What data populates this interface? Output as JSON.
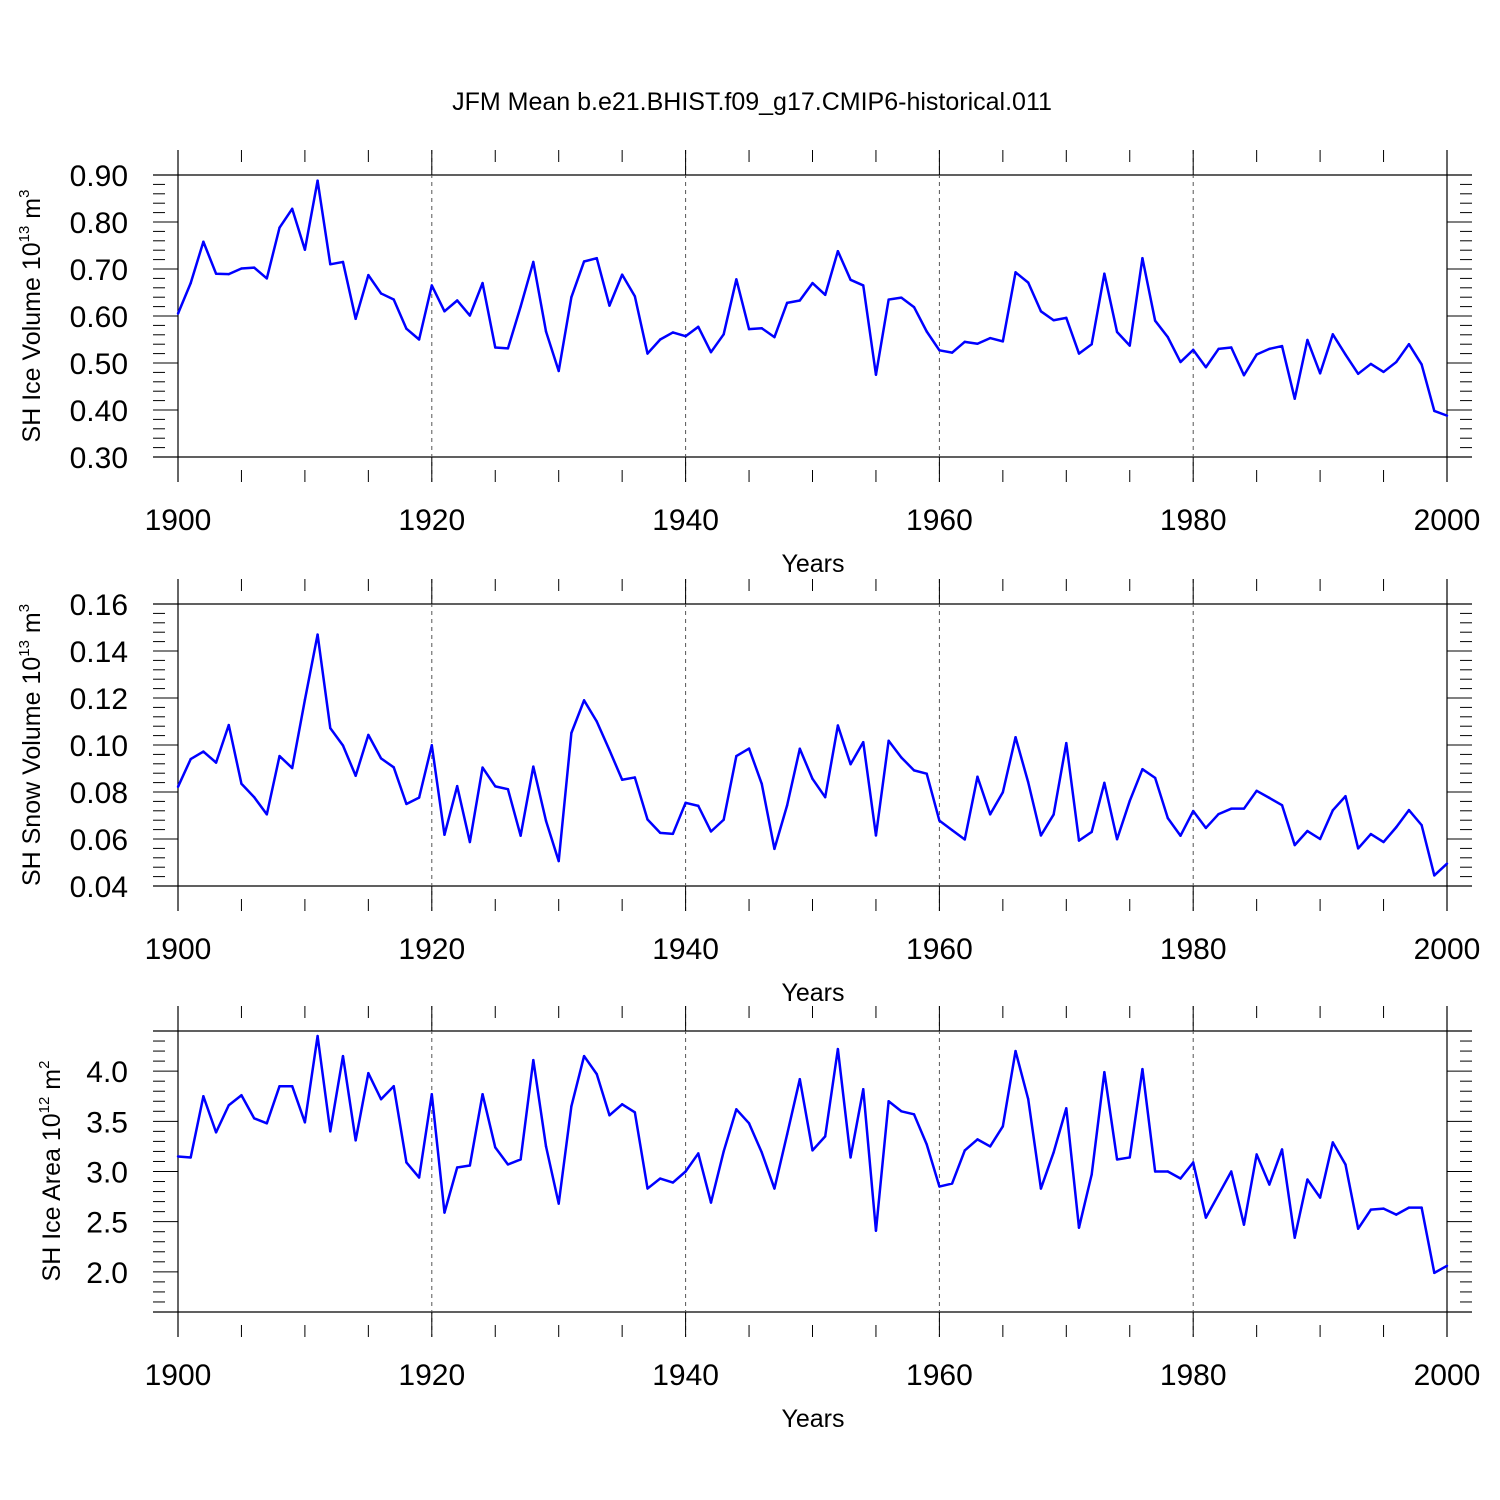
{
  "title": "JFM Mean b.e21.BHIST.f09_g17.CMIP6-historical.011",
  "colors": {
    "series": "#0000ff",
    "axis": "#000000",
    "grid": "#555555"
  },
  "chart_data": [
    {
      "type": "line",
      "title": "",
      "xlabel": "Years",
      "ylabel": {
        "text": "SH Ice Volume 10",
        "sup": "13",
        "unit": " m",
        "unit_sup": "3"
      },
      "xlim": [
        1900,
        2000
      ],
      "ylim": [
        0.3,
        0.9
      ],
      "xticks": [
        1900,
        1920,
        1940,
        1960,
        1980,
        2000
      ],
      "xtick_labels": [
        "1900",
        "1920",
        "1940",
        "1960",
        "1980",
        "2000"
      ],
      "yticks": [
        0.3,
        0.4,
        0.5,
        0.6,
        0.7,
        0.8,
        0.9
      ],
      "ytick_labels": [
        "0.30",
        "0.40",
        "0.50",
        "0.60",
        "0.70",
        "0.80",
        "0.90"
      ],
      "grid_x": "dashed",
      "x_start": 1900,
      "series": [
        {
          "name": "SH Ice Volume",
          "values": [
            0.605,
            0.67,
            0.758,
            0.69,
            0.689,
            0.701,
            0.703,
            0.68,
            0.788,
            0.828,
            0.741,
            0.888,
            0.71,
            0.715,
            0.594,
            0.687,
            0.648,
            0.635,
            0.573,
            0.55,
            0.665,
            0.61,
            0.633,
            0.601,
            0.67,
            0.533,
            0.531,
            0.62,
            0.715,
            0.567,
            0.483,
            0.64,
            0.716,
            0.723,
            0.622,
            0.688,
            0.642,
            0.52,
            0.55,
            0.565,
            0.557,
            0.577,
            0.523,
            0.561,
            0.678,
            0.572,
            0.574,
            0.555,
            0.628,
            0.633,
            0.67,
            0.645,
            0.738,
            0.677,
            0.665,
            0.475,
            0.635,
            0.639,
            0.619,
            0.567,
            0.527,
            0.522,
            0.545,
            0.541,
            0.553,
            0.546,
            0.693,
            0.671,
            0.61,
            0.591,
            0.596,
            0.52,
            0.54,
            0.69,
            0.566,
            0.537,
            0.723,
            0.59,
            0.555,
            0.502,
            0.528,
            0.491,
            0.53,
            0.533,
            0.474,
            0.518,
            0.53,
            0.536,
            0.424,
            0.549,
            0.478,
            0.561,
            0.518,
            0.477,
            0.498,
            0.481,
            0.502,
            0.54,
            0.497,
            0.398,
            0.388
          ]
        }
      ]
    },
    {
      "type": "line",
      "title": "",
      "xlabel": "Years",
      "ylabel": {
        "text": "SH Snow Volume 10",
        "sup": "13",
        "unit": " m",
        "unit_sup": "3"
      },
      "xlim": [
        1900,
        2000
      ],
      "ylim": [
        0.04,
        0.16
      ],
      "xticks": [
        1900,
        1920,
        1940,
        1960,
        1980,
        2000
      ],
      "xtick_labels": [
        "1900",
        "1920",
        "1940",
        "1960",
        "1980",
        "2000"
      ],
      "yticks": [
        0.04,
        0.06,
        0.08,
        0.1,
        0.12,
        0.14,
        0.16
      ],
      "ytick_labels": [
        "0.04",
        "0.06",
        "0.08",
        "0.10",
        "0.12",
        "0.14",
        "0.16"
      ],
      "grid_x": "dashed",
      "x_start": 1900,
      "series": [
        {
          "name": "SH Snow Volume",
          "values": [
            0.0822,
            0.094,
            0.0972,
            0.0925,
            0.1085,
            0.0835,
            0.0778,
            0.0705,
            0.0953,
            0.0902,
            0.1192,
            0.147,
            0.1072,
            0.0998,
            0.0869,
            0.1043,
            0.0943,
            0.0905,
            0.0749,
            0.0776,
            0.0999,
            0.0618,
            0.0825,
            0.0587,
            0.0904,
            0.0824,
            0.0812,
            0.0614,
            0.0908,
            0.0677,
            0.0506,
            0.1051,
            0.119,
            0.11,
            0.0978,
            0.0852,
            0.0862,
            0.0683,
            0.0626,
            0.0622,
            0.0754,
            0.0741,
            0.0632,
            0.0682,
            0.0953,
            0.0985,
            0.0835,
            0.0558,
            0.0743,
            0.0984,
            0.0856,
            0.0778,
            0.1083,
            0.0918,
            0.1012,
            0.0615,
            0.1018,
            0.0947,
            0.0892,
            0.0878,
            0.0678,
            0.0638,
            0.0598,
            0.0865,
            0.0705,
            0.0799,
            0.1033,
            0.0841,
            0.0615,
            0.0704,
            0.1008,
            0.0593,
            0.063,
            0.0839,
            0.0599,
            0.0762,
            0.0897,
            0.086,
            0.0689,
            0.0614,
            0.0719,
            0.0647,
            0.0706,
            0.0729,
            0.0729,
            0.0805,
            0.0775,
            0.0744,
            0.0574,
            0.0634,
            0.06,
            0.0722,
            0.0782,
            0.056,
            0.0621,
            0.0587,
            0.065,
            0.0723,
            0.0659,
            0.0445,
            0.0495
          ]
        }
      ]
    },
    {
      "type": "line",
      "title": "",
      "xlabel": "Years",
      "ylabel": {
        "text": "SH Ice Area 10",
        "sup": "12",
        "unit": " m",
        "unit_sup": "2"
      },
      "xlim": [
        1900,
        2000
      ],
      "ylim": [
        1.6,
        4.4
      ],
      "xticks": [
        1900,
        1920,
        1940,
        1960,
        1980,
        2000
      ],
      "xtick_labels": [
        "1900",
        "1920",
        "1940",
        "1960",
        "1980",
        "2000"
      ],
      "yticks": [
        2.0,
        2.5,
        3.0,
        3.5,
        4.0
      ],
      "ytick_labels": [
        "2.0",
        "2.5",
        "3.0",
        "3.5",
        "4.0"
      ],
      "grid_x": "dashed",
      "x_start": 1900,
      "series": [
        {
          "name": "SH Ice Area",
          "values": [
            3.15,
            3.14,
            3.75,
            3.39,
            3.66,
            3.76,
            3.53,
            3.48,
            3.85,
            3.85,
            3.49,
            4.35,
            3.4,
            4.15,
            3.31,
            3.98,
            3.72,
            3.85,
            3.09,
            2.94,
            3.77,
            2.59,
            3.04,
            3.06,
            3.77,
            3.24,
            3.07,
            3.12,
            4.11,
            3.25,
            2.68,
            3.65,
            4.15,
            3.97,
            3.56,
            3.67,
            3.59,
            2.83,
            2.93,
            2.89,
            3.0,
            3.18,
            2.69,
            3.2,
            3.62,
            3.48,
            3.19,
            2.83,
            3.37,
            3.92,
            3.21,
            3.35,
            4.22,
            3.14,
            3.82,
            2.41,
            3.7,
            3.6,
            3.57,
            3.27,
            2.85,
            2.88,
            3.21,
            3.32,
            3.25,
            3.45,
            4.2,
            3.72,
            2.83,
            3.19,
            3.63,
            2.44,
            2.97,
            3.99,
            3.12,
            3.14,
            4.02,
            3.0,
            3.0,
            2.93,
            3.09,
            2.54,
            2.77,
            3.0,
            2.47,
            3.17,
            2.87,
            3.22,
            2.34,
            2.92,
            2.74,
            3.29,
            3.07,
            2.43,
            2.62,
            2.63,
            2.57,
            2.64,
            2.64,
            1.99,
            2.06
          ]
        }
      ]
    }
  ]
}
